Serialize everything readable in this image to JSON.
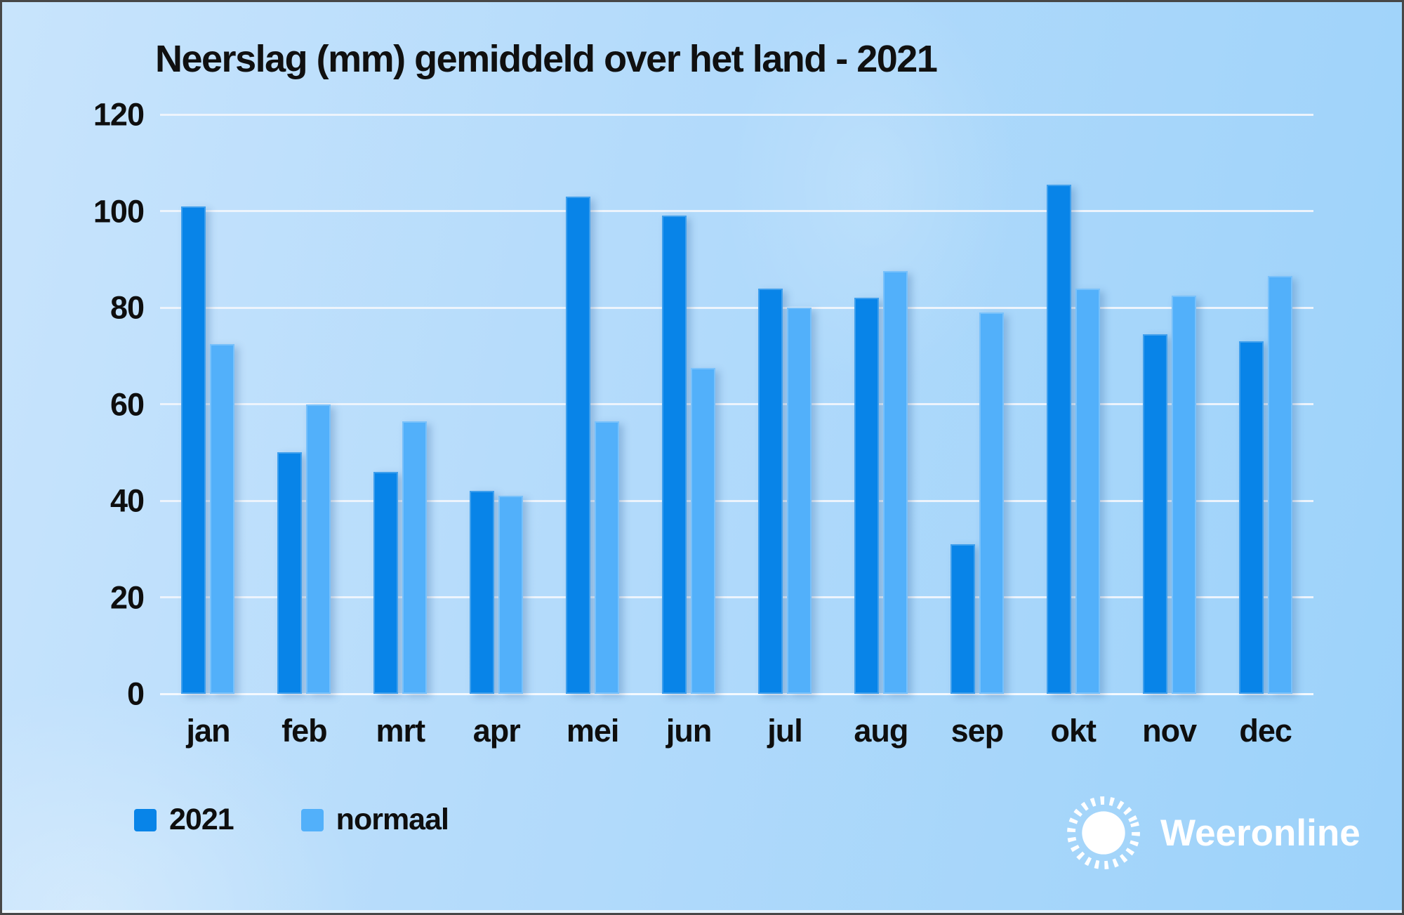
{
  "title": "Neerslag (mm) gemiddeld over het land - 2021",
  "chart_data": {
    "type": "bar",
    "title": "Neerslag (mm) gemiddeld over het land - 2021",
    "unit": "mm",
    "categories": [
      "jan",
      "feb",
      "mrt",
      "apr",
      "mei",
      "jun",
      "jul",
      "aug",
      "sep",
      "okt",
      "nov",
      "dec"
    ],
    "series": [
      {
        "name": "2021",
        "color": "#0884e8",
        "values": [
          101,
          50,
          46,
          42,
          103,
          99,
          84,
          82,
          31,
          105.5,
          74.5,
          73
        ]
      },
      {
        "name": "normaal",
        "color": "#52b0fa",
        "values": [
          72.5,
          60,
          56.5,
          41,
          56.5,
          67.5,
          80,
          87.5,
          79,
          84,
          82.5,
          86.5
        ]
      }
    ],
    "ylim": [
      0,
      120
    ],
    "yticks": [
      0,
      20,
      40,
      60,
      80,
      100,
      120
    ],
    "grid": true,
    "legend_position": "bottom-left"
  },
  "branding": {
    "logo_text": "Weeronline"
  },
  "colors": {
    "series_2021": "#0884e8",
    "series_normaal": "#52b0fa",
    "background_light": "#c8e4fc",
    "background_deep": "#9cd2fa",
    "gridline": "#edf4fc",
    "text": "#0e0e0e",
    "logo": "#ffffff"
  }
}
